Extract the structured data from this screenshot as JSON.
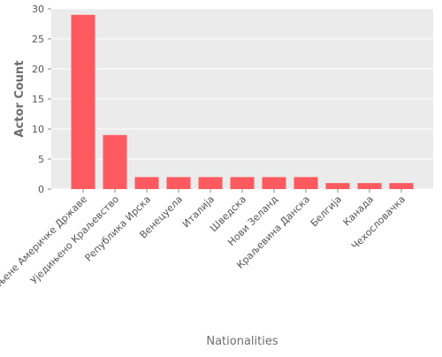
{
  "chart_data": {
    "type": "bar",
    "title": "",
    "xlabel": "Nationalities",
    "ylabel": "Actor Count",
    "categories": [
      "Сједињене Америчке Државе",
      "Уједињено Краљевство",
      "Република Ирска",
      "Венецуела",
      "Италија",
      "Шведска",
      "Нови Зеланд",
      "Краљевина Данска",
      "Белгија",
      "Канада",
      "Чехословачка"
    ],
    "series": [
      {
        "values": [
          29,
          9,
          2,
          2,
          2,
          2,
          2,
          2,
          1,
          1,
          1
        ]
      }
    ],
    "ylim": [
      0,
      30
    ],
    "yticks": [
      0,
      5,
      10,
      15,
      20,
      25,
      30
    ],
    "grid": true,
    "colors": {
      "bar": "#ff5a5f",
      "plot_bg": "#ebebeb",
      "grid": "#ffffff",
      "text": "#555555",
      "label": "#6e6e6e"
    }
  }
}
